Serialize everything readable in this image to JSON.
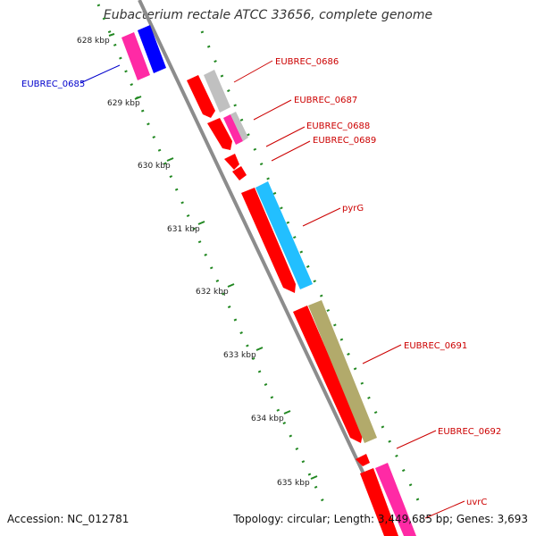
{
  "title": "Eubacterium rectale ATCC 33656, complete genome",
  "accession": "Accession: NC_012781",
  "summary": "Topology: circular; Length: 3,449,685 bp; Genes: 3,693",
  "ticks": [
    "628 kbp",
    "629 kbp",
    "630 kbp",
    "631 kbp",
    "632 kbp",
    "633 kbp",
    "634 kbp",
    "635 kbp"
  ],
  "genes": [
    {
      "label": "EUBREC_0685",
      "color": "#0000cc"
    },
    {
      "label": "EUBREC_0686",
      "color": "#cc0000"
    },
    {
      "label": "EUBREC_0687",
      "color": "#cc0000"
    },
    {
      "label": "EUBREC_0688",
      "color": "#cc0000"
    },
    {
      "label": "EUBREC_0689",
      "color": "#cc0000"
    },
    {
      "label": "pyrG",
      "color": "#cc0000"
    },
    {
      "label": "EUBREC_0691",
      "color": "#cc0000"
    },
    {
      "label": "EUBREC_0692",
      "color": "#cc0000"
    },
    {
      "label": "uvrC",
      "color": "#cc0000"
    }
  ],
  "colors": {
    "cds": "#ff0000",
    "backbone": "#8c8c8c",
    "tick": "#228822",
    "blue": "#0000ff",
    "magenta": "#ff2aa5",
    "cyan": "#22bfff",
    "olive": "#b2aa6b",
    "gray": "#c0c0c0"
  }
}
